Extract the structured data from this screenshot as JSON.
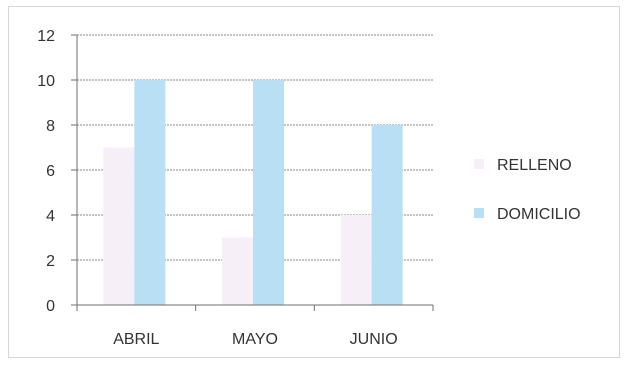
{
  "chart_data": {
    "type": "bar",
    "categories": [
      "ABRIL",
      "MAYO",
      "JUNIO"
    ],
    "series": [
      {
        "name": "RELLENO",
        "values": [
          7,
          3,
          4
        ]
      },
      {
        "name": "DOMICILIO",
        "values": [
          10,
          10,
          8
        ]
      }
    ],
    "ylim": [
      0,
      12
    ],
    "yticks": [
      "0",
      "2",
      "4",
      "6",
      "8",
      "10",
      "12"
    ],
    "grid": true,
    "legend": "right"
  },
  "colors": {
    "RELLENO": "#f6eff8",
    "DOMICILIO": "#b9dff4",
    "grid": "#8a8a8a",
    "axis": "#6f6f6f"
  }
}
